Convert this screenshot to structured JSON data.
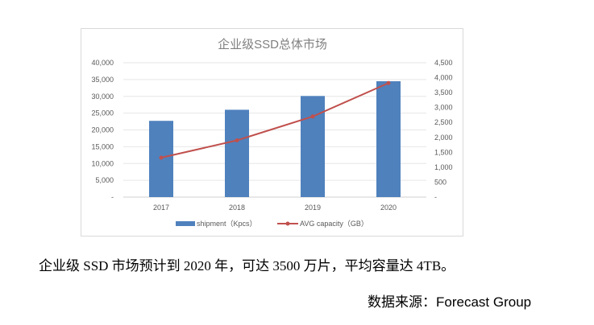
{
  "chart_data": {
    "type": "bar+line",
    "title": "企业级SSD总体市场",
    "categories": [
      "2017",
      "2018",
      "2019",
      "2020"
    ],
    "series": [
      {
        "name": "shipment（Kpcs）",
        "type": "bar",
        "axis": "left",
        "color": "#4f81bd",
        "values": [
          22700,
          26000,
          30100,
          34500
        ]
      },
      {
        "name": "AVG capacity（GB）",
        "type": "line",
        "axis": "right",
        "color": "#c0504d",
        "values": [
          1320,
          1900,
          2700,
          3820
        ]
      }
    ],
    "left_axis": {
      "ylim": [
        0,
        40000
      ],
      "ticks": [
        "-",
        "5,000",
        "10,000",
        "15,000",
        "20,000",
        "25,000",
        "30,000",
        "35,000",
        "40,000"
      ]
    },
    "right_axis": {
      "ylim": [
        0,
        4500
      ],
      "ticks": [
        "-",
        "500",
        "1,000",
        "1,500",
        "2,000",
        "2,500",
        "3,000",
        "3,500",
        "4,000",
        "4,500"
      ]
    },
    "grid": true,
    "legend": "bottom"
  },
  "caption": "企业级 SSD 市场预计到 2020 年，可达 3500 万片，平均容量达 4TB。",
  "source": "数据来源：Forecast Group"
}
